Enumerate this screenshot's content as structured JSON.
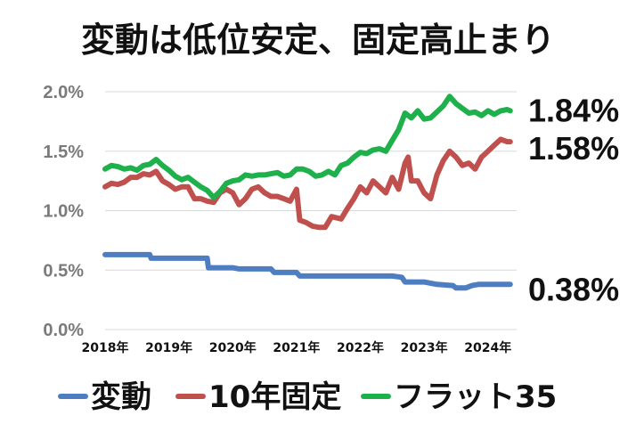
{
  "chart_data": {
    "type": "line",
    "title": "変動は低位安定、固定高止まり",
    "xlabel": "",
    "ylabel": "",
    "ylim": [
      0,
      2.0
    ],
    "yticks": [
      {
        "value": 0.0,
        "label": "0.0%"
      },
      {
        "value": 0.5,
        "label": "0.5%"
      },
      {
        "value": 1.0,
        "label": "1.0%"
      },
      {
        "value": 1.5,
        "label": "1.5%"
      },
      {
        "value": 2.0,
        "label": "2.0%"
      }
    ],
    "xlim": [
      2018.0,
      2024.45
    ],
    "xticks": [
      {
        "value": 2018.0,
        "label": "2018年"
      },
      {
        "value": 2019.0,
        "label": "2019年"
      },
      {
        "value": 2020.0,
        "label": "2020年"
      },
      {
        "value": 2021.0,
        "label": "2021年"
      },
      {
        "value": 2022.0,
        "label": "2022年"
      },
      {
        "value": 2023.0,
        "label": "2023年"
      },
      {
        "value": 2024.0,
        "label": "2024年"
      }
    ],
    "grid": true,
    "legend_position": "bottom",
    "series": [
      {
        "name": "変動",
        "color": "#4e7dc1",
        "end_label": "0.38%",
        "end_value": 0.38,
        "points": [
          [
            2018.0,
            0.63
          ],
          [
            2018.7,
            0.63
          ],
          [
            2018.72,
            0.6
          ],
          [
            2019.6,
            0.6
          ],
          [
            2019.62,
            0.52
          ],
          [
            2020.0,
            0.52
          ],
          [
            2020.1,
            0.51
          ],
          [
            2020.6,
            0.51
          ],
          [
            2020.65,
            0.48
          ],
          [
            2021.0,
            0.48
          ],
          [
            2021.05,
            0.45
          ],
          [
            2021.5,
            0.45
          ],
          [
            2022.0,
            0.45
          ],
          [
            2022.5,
            0.45
          ],
          [
            2022.65,
            0.44
          ],
          [
            2022.7,
            0.4
          ],
          [
            2023.0,
            0.4
          ],
          [
            2023.2,
            0.38
          ],
          [
            2023.45,
            0.37
          ],
          [
            2023.5,
            0.35
          ],
          [
            2023.65,
            0.35
          ],
          [
            2023.75,
            0.37
          ],
          [
            2023.85,
            0.38
          ],
          [
            2024.0,
            0.38
          ],
          [
            2024.35,
            0.38
          ]
        ]
      },
      {
        "name": "10年固定",
        "color": "#c0504d",
        "end_label": "1.58%",
        "end_value": 1.58,
        "points": [
          [
            2018.0,
            1.2
          ],
          [
            2018.1,
            1.23
          ],
          [
            2018.2,
            1.22
          ],
          [
            2018.3,
            1.24
          ],
          [
            2018.4,
            1.28
          ],
          [
            2018.5,
            1.28
          ],
          [
            2018.6,
            1.31
          ],
          [
            2018.7,
            1.3
          ],
          [
            2018.8,
            1.33
          ],
          [
            2018.9,
            1.25
          ],
          [
            2019.0,
            1.22
          ],
          [
            2019.1,
            1.18
          ],
          [
            2019.2,
            1.2
          ],
          [
            2019.3,
            1.2
          ],
          [
            2019.4,
            1.1
          ],
          [
            2019.5,
            1.1
          ],
          [
            2019.6,
            1.08
          ],
          [
            2019.7,
            1.07
          ],
          [
            2019.8,
            1.15
          ],
          [
            2019.9,
            1.18
          ],
          [
            2020.0,
            1.15
          ],
          [
            2020.1,
            1.05
          ],
          [
            2020.2,
            1.1
          ],
          [
            2020.3,
            1.18
          ],
          [
            2020.4,
            1.2
          ],
          [
            2020.5,
            1.15
          ],
          [
            2020.6,
            1.12
          ],
          [
            2020.7,
            1.12
          ],
          [
            2020.8,
            1.1
          ],
          [
            2020.9,
            1.08
          ],
          [
            2021.0,
            1.18
          ],
          [
            2021.05,
            0.92
          ],
          [
            2021.15,
            0.9
          ],
          [
            2021.25,
            0.87
          ],
          [
            2021.35,
            0.86
          ],
          [
            2021.45,
            0.86
          ],
          [
            2021.55,
            0.95
          ],
          [
            2021.7,
            0.93
          ],
          [
            2021.8,
            1.02
          ],
          [
            2021.9,
            1.1
          ],
          [
            2022.0,
            1.2
          ],
          [
            2022.1,
            1.15
          ],
          [
            2022.2,
            1.25
          ],
          [
            2022.3,
            1.2
          ],
          [
            2022.4,
            1.15
          ],
          [
            2022.5,
            1.28
          ],
          [
            2022.6,
            1.18
          ],
          [
            2022.7,
            1.4
          ],
          [
            2022.75,
            1.45
          ],
          [
            2022.8,
            1.25
          ],
          [
            2022.9,
            1.25
          ],
          [
            2023.0,
            1.15
          ],
          [
            2023.1,
            1.1
          ],
          [
            2023.2,
            1.3
          ],
          [
            2023.3,
            1.42
          ],
          [
            2023.4,
            1.5
          ],
          [
            2023.5,
            1.45
          ],
          [
            2023.6,
            1.38
          ],
          [
            2023.7,
            1.4
          ],
          [
            2023.8,
            1.35
          ],
          [
            2023.9,
            1.45
          ],
          [
            2024.0,
            1.5
          ],
          [
            2024.1,
            1.55
          ],
          [
            2024.2,
            1.6
          ],
          [
            2024.3,
            1.58
          ],
          [
            2024.35,
            1.58
          ]
        ]
      },
      {
        "name": "フラット35",
        "color": "#1db04b",
        "end_label": "1.84%",
        "end_value": 1.84,
        "points": [
          [
            2018.0,
            1.35
          ],
          [
            2018.1,
            1.38
          ],
          [
            2018.2,
            1.37
          ],
          [
            2018.3,
            1.35
          ],
          [
            2018.4,
            1.36
          ],
          [
            2018.5,
            1.34
          ],
          [
            2018.6,
            1.38
          ],
          [
            2018.7,
            1.39
          ],
          [
            2018.8,
            1.43
          ],
          [
            2018.9,
            1.38
          ],
          [
            2019.0,
            1.34
          ],
          [
            2019.1,
            1.29
          ],
          [
            2019.2,
            1.26
          ],
          [
            2019.3,
            1.28
          ],
          [
            2019.4,
            1.24
          ],
          [
            2019.5,
            1.2
          ],
          [
            2019.6,
            1.17
          ],
          [
            2019.7,
            1.11
          ],
          [
            2019.8,
            1.16
          ],
          [
            2019.9,
            1.23
          ],
          [
            2020.0,
            1.25
          ],
          [
            2020.1,
            1.26
          ],
          [
            2020.2,
            1.3
          ],
          [
            2020.3,
            1.29
          ],
          [
            2020.4,
            1.3
          ],
          [
            2020.5,
            1.3
          ],
          [
            2020.6,
            1.31
          ],
          [
            2020.7,
            1.32
          ],
          [
            2020.8,
            1.29
          ],
          [
            2020.9,
            1.3
          ],
          [
            2021.0,
            1.35
          ],
          [
            2021.1,
            1.35
          ],
          [
            2021.2,
            1.33
          ],
          [
            2021.3,
            1.29
          ],
          [
            2021.4,
            1.3
          ],
          [
            2021.5,
            1.33
          ],
          [
            2021.6,
            1.3
          ],
          [
            2021.7,
            1.38
          ],
          [
            2021.8,
            1.4
          ],
          [
            2021.9,
            1.45
          ],
          [
            2022.0,
            1.49
          ],
          [
            2022.1,
            1.48
          ],
          [
            2022.2,
            1.51
          ],
          [
            2022.3,
            1.52
          ],
          [
            2022.4,
            1.5
          ],
          [
            2022.5,
            1.59
          ],
          [
            2022.6,
            1.68
          ],
          [
            2022.7,
            1.82
          ],
          [
            2022.8,
            1.78
          ],
          [
            2022.9,
            1.84
          ],
          [
            2023.0,
            1.77
          ],
          [
            2023.1,
            1.78
          ],
          [
            2023.2,
            1.83
          ],
          [
            2023.3,
            1.88
          ],
          [
            2023.4,
            1.96
          ],
          [
            2023.5,
            1.9
          ],
          [
            2023.6,
            1.86
          ],
          [
            2023.7,
            1.82
          ],
          [
            2023.8,
            1.83
          ],
          [
            2023.9,
            1.8
          ],
          [
            2024.0,
            1.84
          ],
          [
            2024.1,
            1.81
          ],
          [
            2024.2,
            1.84
          ],
          [
            2024.3,
            1.85
          ],
          [
            2024.35,
            1.84
          ]
        ]
      }
    ]
  }
}
